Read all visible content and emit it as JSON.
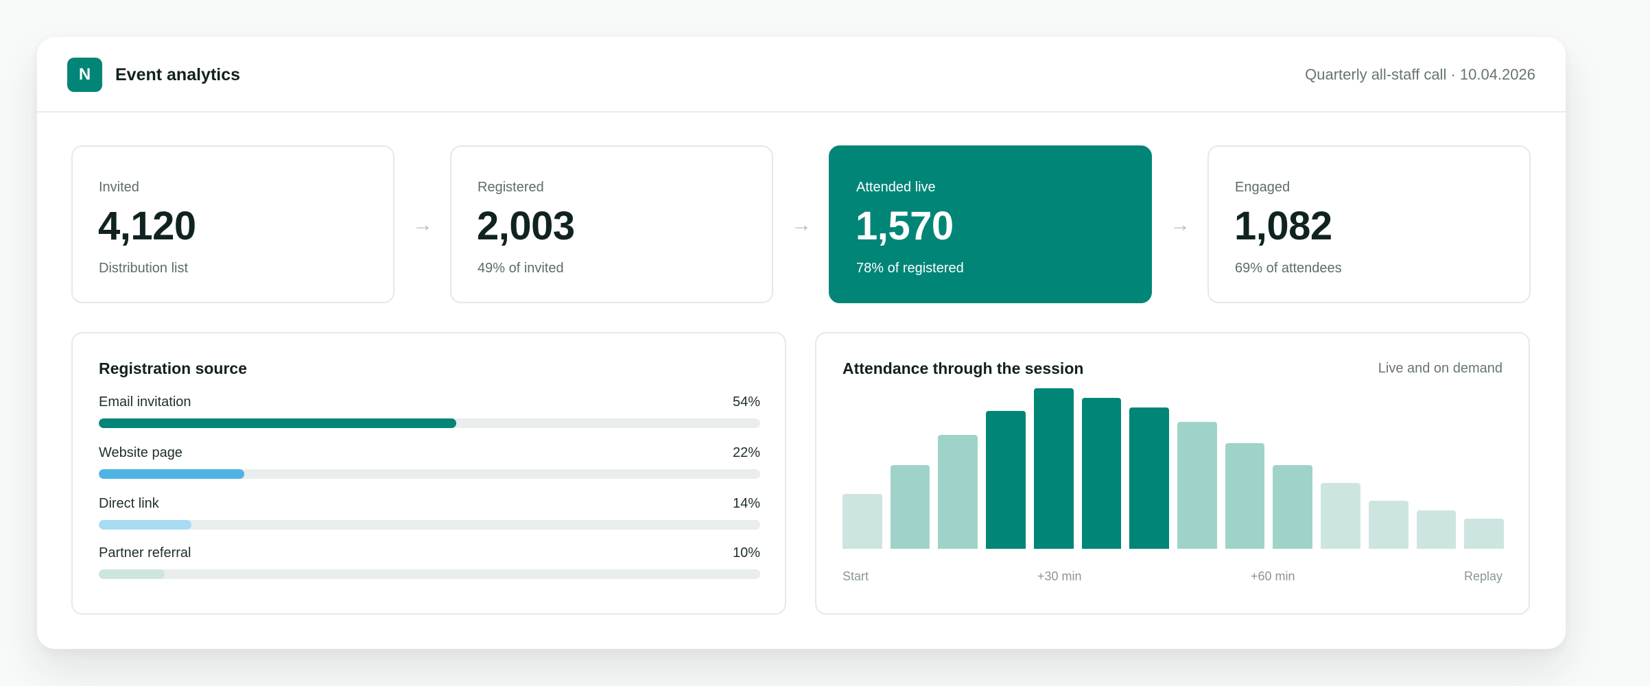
{
  "header": {
    "logo_letter": "N",
    "title": "Event analytics",
    "event_meta": "Quarterly all-staff call · 10.04.2026"
  },
  "funnel": [
    {
      "label": "Invited",
      "value": "4,120",
      "sub": "Distribution list",
      "highlighted": false
    },
    {
      "label": "Registered",
      "value": "2,003",
      "sub": "49% of invited",
      "highlighted": false
    },
    {
      "label": "Attended live",
      "value": "1,570",
      "sub": "78% of registered",
      "highlighted": true
    },
    {
      "label": "Engaged",
      "value": "1,082",
      "sub": "69% of attendees",
      "highlighted": false
    }
  ],
  "funnel_arrow": "→",
  "registration_source": {
    "title": "Registration source",
    "sources": [
      {
        "name": "Email invitation",
        "pct_label": "54%",
        "value": 54,
        "color": "#008577"
      },
      {
        "name": "Website page",
        "pct_label": "22%",
        "value": 22,
        "color": "#4fb3e3"
      },
      {
        "name": "Direct link",
        "pct_label": "14%",
        "value": 14,
        "color": "#a8dcf3"
      },
      {
        "name": "Partner referral",
        "pct_label": "10%",
        "value": 10,
        "color": "#cce5df"
      }
    ]
  },
  "attendance": {
    "title": "Attendance through the session",
    "note": "Live and on demand",
    "colors": {
      "dark": "#008577",
      "mid": "#9fd3c9",
      "light": "#cde5e0"
    }
  },
  "chart_data": {
    "type": "bar",
    "title": "Attendance through the session",
    "subtitle": "Live and on demand",
    "categories": [
      "1",
      "2",
      "3",
      "4",
      "5",
      "6",
      "7",
      "8",
      "9",
      "10",
      "11",
      "12",
      "13",
      "14"
    ],
    "tick_labels": [
      "Start",
      "+30 min",
      "+60 min",
      "Replay"
    ],
    "values": [
      34,
      52,
      71,
      86,
      100,
      94,
      88,
      79,
      66,
      52,
      41,
      30,
      24,
      19
    ],
    "shades": [
      "light",
      "mid",
      "mid",
      "dark",
      "dark",
      "dark",
      "dark",
      "mid",
      "mid",
      "mid",
      "light",
      "light",
      "light",
      "light"
    ],
    "ylim": [
      0,
      100
    ],
    "grid": false
  }
}
